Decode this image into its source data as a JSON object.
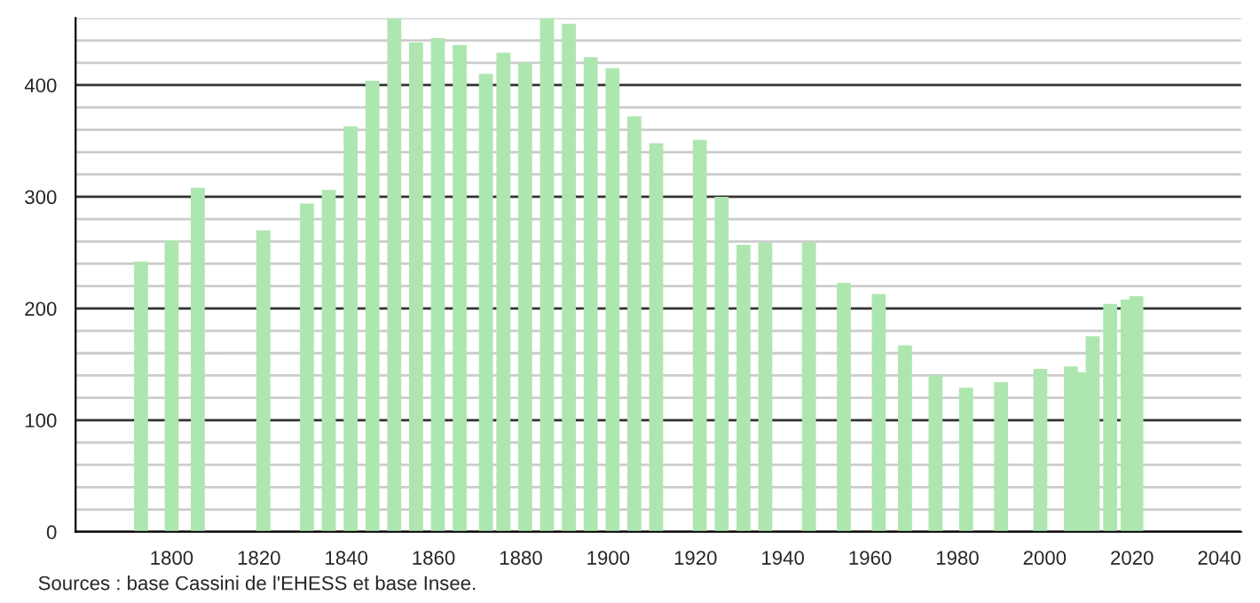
{
  "chart_data": {
    "type": "bar",
    "x": [
      1793,
      1800,
      1806,
      1821,
      1831,
      1836,
      1841,
      1846,
      1851,
      1856,
      1861,
      1866,
      1872,
      1876,
      1881,
      1886,
      1891,
      1896,
      1901,
      1906,
      1911,
      1921,
      1926,
      1931,
      1936,
      1946,
      1954,
      1962,
      1968,
      1975,
      1982,
      1990,
      1999,
      2006,
      2009,
      2011,
      2015,
      2019,
      2021
    ],
    "values": [
      242,
      261,
      308,
      270,
      294,
      306,
      363,
      404,
      460,
      438,
      442,
      436,
      410,
      429,
      420,
      460,
      455,
      425,
      415,
      372,
      348,
      351,
      300,
      257,
      259,
      259,
      223,
      213,
      167,
      140,
      129,
      134,
      146,
      148,
      143,
      175,
      204,
      208,
      211
    ],
    "color": "#aee6b0",
    "xlim": [
      1778,
      2045
    ],
    "xticks": [
      1800,
      1820,
      1840,
      1860,
      1880,
      1900,
      1920,
      1940,
      1960,
      1980,
      2000,
      2020,
      2040
    ],
    "ylim": [
      0,
      460
    ],
    "yticks": [
      0,
      {
        "value": 20,
        "label": null
      },
      {
        "value": 40,
        "label": null
      },
      {
        "value": 60,
        "label": null
      },
      {
        "value": 80,
        "label": null
      },
      100,
      {
        "value": 120,
        "label": null
      },
      {
        "value": 140,
        "label": null
      },
      {
        "value": 160,
        "label": null
      },
      {
        "value": 180,
        "label": null
      },
      200,
      {
        "value": 220,
        "label": null
      },
      {
        "value": 240,
        "label": null
      },
      {
        "value": 260,
        "label": null
      },
      {
        "value": 280,
        "label": null
      },
      300,
      {
        "value": 320,
        "label": null
      },
      {
        "value": 340,
        "label": null
      },
      {
        "value": 360,
        "label": null
      },
      {
        "value": 380,
        "label": null
      },
      400,
      {
        "value": 420,
        "label": null
      },
      {
        "value": 440,
        "label": null
      },
      {
        "value": 460,
        "label": null
      }
    ],
    "grid": "y",
    "annotations": [
      "Sources : base Cassini de l'EHESS et base Insee."
    ]
  }
}
